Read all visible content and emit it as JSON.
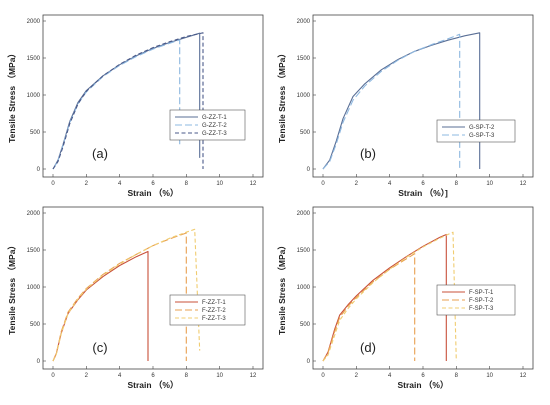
{
  "chart_data": [
    {
      "type": "line",
      "panel_label": "(a)",
      "xlabel": "Strain （%）",
      "ylabel": "Tensile Stress （MPa）",
      "xlim": [
        0,
        12
      ],
      "ylim": [
        0,
        2000
      ],
      "xticks": [
        "0",
        "2",
        "4",
        "6",
        "8",
        "10",
        "12"
      ],
      "yticks": [
        "0",
        "500",
        "1000",
        "1500",
        "2000"
      ],
      "grid": false,
      "legend": "center-right",
      "series": [
        {
          "name": "G-ZZ-T-1",
          "color": "#5a6f96",
          "dash": "solid",
          "x": [
            0,
            0.3,
            0.6,
            1.0,
            1.5,
            2.0,
            3.0,
            4.0,
            5.0,
            6.0,
            7.0,
            8.0,
            8.8,
            8.8
          ],
          "y": [
            0,
            120,
            330,
            640,
            900,
            1060,
            1260,
            1410,
            1530,
            1630,
            1710,
            1780,
            1835,
            150
          ]
        },
        {
          "name": "G-ZZ-T-2",
          "color": "#8eb8e0",
          "dash": "long-dash",
          "x": [
            0,
            0.3,
            0.6,
            1.0,
            1.5,
            2.0,
            3.0,
            4.0,
            5.0,
            6.0,
            7.0,
            7.6,
            7.6
          ],
          "y": [
            0,
            110,
            320,
            620,
            880,
            1040,
            1250,
            1400,
            1520,
            1620,
            1700,
            1745,
            330
          ]
        },
        {
          "name": "G-ZZ-T-3",
          "color": "#4a5a8a",
          "dash": "dash",
          "x": [
            0,
            0.3,
            0.6,
            1.0,
            1.5,
            2.0,
            3.0,
            4.0,
            5.0,
            6.0,
            7.0,
            8.0,
            9.0,
            9.0
          ],
          "y": [
            0,
            100,
            300,
            610,
            880,
            1050,
            1260,
            1415,
            1540,
            1640,
            1720,
            1790,
            1840,
            0
          ]
        }
      ]
    },
    {
      "type": "line",
      "panel_label": "(b)",
      "xlabel": "Strain （%）]",
      "ylabel": "Tensile Stress （MPa）",
      "xlim": [
        0,
        12
      ],
      "ylim": [
        0,
        2000
      ],
      "xticks": [
        "0",
        "2",
        "4",
        "6",
        "8",
        "10",
        "12"
      ],
      "yticks": [
        "0",
        "500",
        "1000",
        "1500",
        "2000"
      ],
      "grid": false,
      "legend": "bottom-right",
      "series": [
        {
          "name": "G-SP-T-2",
          "color": "#5a6f96",
          "dash": "solid",
          "x": [
            0,
            0.4,
            0.8,
            1.2,
            1.8,
            2.5,
            3.5,
            4.5,
            5.5,
            6.5,
            7.5,
            8.5,
            9.4,
            9.4
          ],
          "y": [
            0,
            120,
            380,
            680,
            980,
            1150,
            1340,
            1480,
            1590,
            1670,
            1740,
            1800,
            1840,
            0
          ]
        },
        {
          "name": "G-SP-T-3",
          "color": "#8eb8e0",
          "dash": "long-dash",
          "x": [
            0,
            0.4,
            0.8,
            1.2,
            1.8,
            2.5,
            3.5,
            4.5,
            5.5,
            6.5,
            7.5,
            8.2,
            8.2
          ],
          "y": [
            0,
            100,
            340,
            630,
            930,
            1120,
            1320,
            1470,
            1590,
            1680,
            1760,
            1820,
            0
          ]
        }
      ]
    },
    {
      "type": "line",
      "panel_label": "(c)",
      "xlabel": "Strain （%）",
      "ylabel": "Tensile Stress （MPa）",
      "xlim": [
        0,
        12
      ],
      "ylim": [
        0,
        2000
      ],
      "xticks": [
        "0",
        "2",
        "4",
        "6",
        "8",
        "10",
        "12"
      ],
      "yticks": [
        "0",
        "500",
        "1000",
        "1500",
        "2000"
      ],
      "grid": false,
      "legend": "center-right",
      "series": [
        {
          "name": "F-ZZ-T-1",
          "color": "#c8503a",
          "dash": "solid",
          "x": [
            0,
            0.2,
            0.5,
            0.9,
            1.5,
            2.0,
            3.0,
            4.0,
            5.0,
            5.7,
            5.7
          ],
          "y": [
            0,
            100,
            380,
            640,
            830,
            960,
            1140,
            1290,
            1410,
            1480,
            0
          ]
        },
        {
          "name": "F-ZZ-T-2",
          "color": "#e8a050",
          "dash": "long-dash",
          "x": [
            0,
            0.2,
            0.5,
            0.9,
            1.5,
            2.0,
            3.0,
            4.0,
            5.0,
            6.0,
            7.0,
            8.0,
            8.0
          ],
          "y": [
            0,
            100,
            400,
            660,
            850,
            980,
            1170,
            1320,
            1440,
            1560,
            1650,
            1730,
            0
          ]
        },
        {
          "name": "F-ZZ-T-3",
          "color": "#f0cc70",
          "dash": "dash",
          "x": [
            0,
            0.2,
            0.5,
            0.9,
            1.5,
            2.0,
            3.0,
            4.0,
            5.0,
            6.0,
            7.0,
            8.0,
            8.5,
            8.8
          ],
          "y": [
            0,
            90,
            370,
            640,
            840,
            970,
            1160,
            1310,
            1440,
            1560,
            1660,
            1740,
            1780,
            140
          ]
        }
      ]
    },
    {
      "type": "line",
      "panel_label": "(d)",
      "xlabel": "Strain （%）",
      "ylabel": "Tensile Stress （MPa）",
      "xlim": [
        0,
        12
      ],
      "ylim": [
        0,
        2000
      ],
      "xticks": [
        "0",
        "2",
        "4",
        "6",
        "8",
        "10",
        "12"
      ],
      "yticks": [
        "0",
        "500",
        "1000",
        "1500",
        "2000"
      ],
      "grid": false,
      "legend": "bottom-right",
      "series": [
        {
          "name": "F-SP-T-1",
          "color": "#c8503a",
          "dash": "solid",
          "x": [
            0,
            0.3,
            0.7,
            1.0,
            1.5,
            2.0,
            3.0,
            4.0,
            5.0,
            6.0,
            7.0,
            7.4,
            7.4
          ],
          "y": [
            0,
            120,
            430,
            620,
            760,
            880,
            1090,
            1260,
            1410,
            1550,
            1670,
            1710,
            0
          ]
        },
        {
          "name": "F-SP-T-2",
          "color": "#e8a050",
          "dash": "long-dash",
          "x": [
            0,
            0.3,
            0.7,
            1.0,
            1.5,
            2.0,
            3.0,
            4.0,
            5.0,
            5.5,
            5.5
          ],
          "y": [
            0,
            110,
            400,
            590,
            740,
            860,
            1070,
            1240,
            1380,
            1450,
            0
          ]
        },
        {
          "name": "F-SP-T-3",
          "color": "#f0cc70",
          "dash": "dash",
          "x": [
            0,
            0.3,
            0.7,
            1.0,
            1.5,
            2.0,
            3.0,
            4.0,
            5.0,
            6.0,
            7.0,
            7.8,
            8.0
          ],
          "y": [
            0,
            80,
            350,
            550,
            710,
            840,
            1060,
            1240,
            1400,
            1540,
            1660,
            1740,
            0
          ]
        }
      ]
    }
  ]
}
